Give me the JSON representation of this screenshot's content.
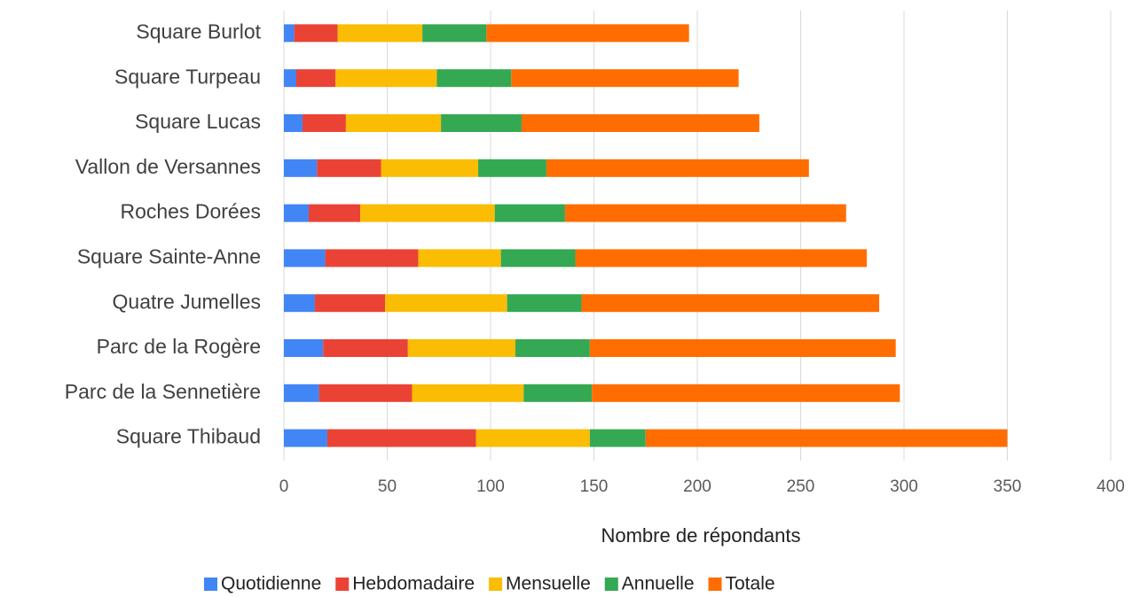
{
  "chart_data": {
    "type": "stacked_barh",
    "x_label": "Nombre de répondants",
    "categories": [
      "Square Burlot",
      "Square Turpeau",
      "Square Lucas",
      "Vallon de Versannes",
      "Roches Dorées",
      "Square Sainte-Anne",
      "Quatre Jumelles",
      "Parc de la Rogère",
      "Parc de la Sennetière",
      "Square Thibaud"
    ],
    "series": [
      {
        "name": "Quotidienne",
        "color": "#4285f4",
        "values": [
          5,
          6,
          9,
          16,
          12,
          20,
          15,
          19,
          17,
          21
        ]
      },
      {
        "name": "Hebdomadaire",
        "color": "#ea4335",
        "values": [
          21,
          19,
          21,
          31,
          25,
          45,
          34,
          41,
          45,
          72
        ]
      },
      {
        "name": "Mensuelle",
        "color": "#fbbc04",
        "values": [
          41,
          49,
          46,
          47,
          65,
          40,
          59,
          52,
          54,
          55
        ]
      },
      {
        "name": "Annuelle",
        "color": "#34a853",
        "values": [
          31,
          36,
          39,
          33,
          34,
          36,
          36,
          36,
          33,
          27
        ]
      },
      {
        "name": "Totale",
        "color": "#ff6d01",
        "values": [
          98,
          110,
          115,
          127,
          136,
          141,
          144,
          148,
          149,
          175
        ]
      }
    ],
    "xlim": [
      0,
      400
    ],
    "xticks": [
      0,
      50,
      100,
      150,
      200,
      250,
      300,
      350,
      400
    ],
    "grid": true,
    "legend": "bottom"
  }
}
